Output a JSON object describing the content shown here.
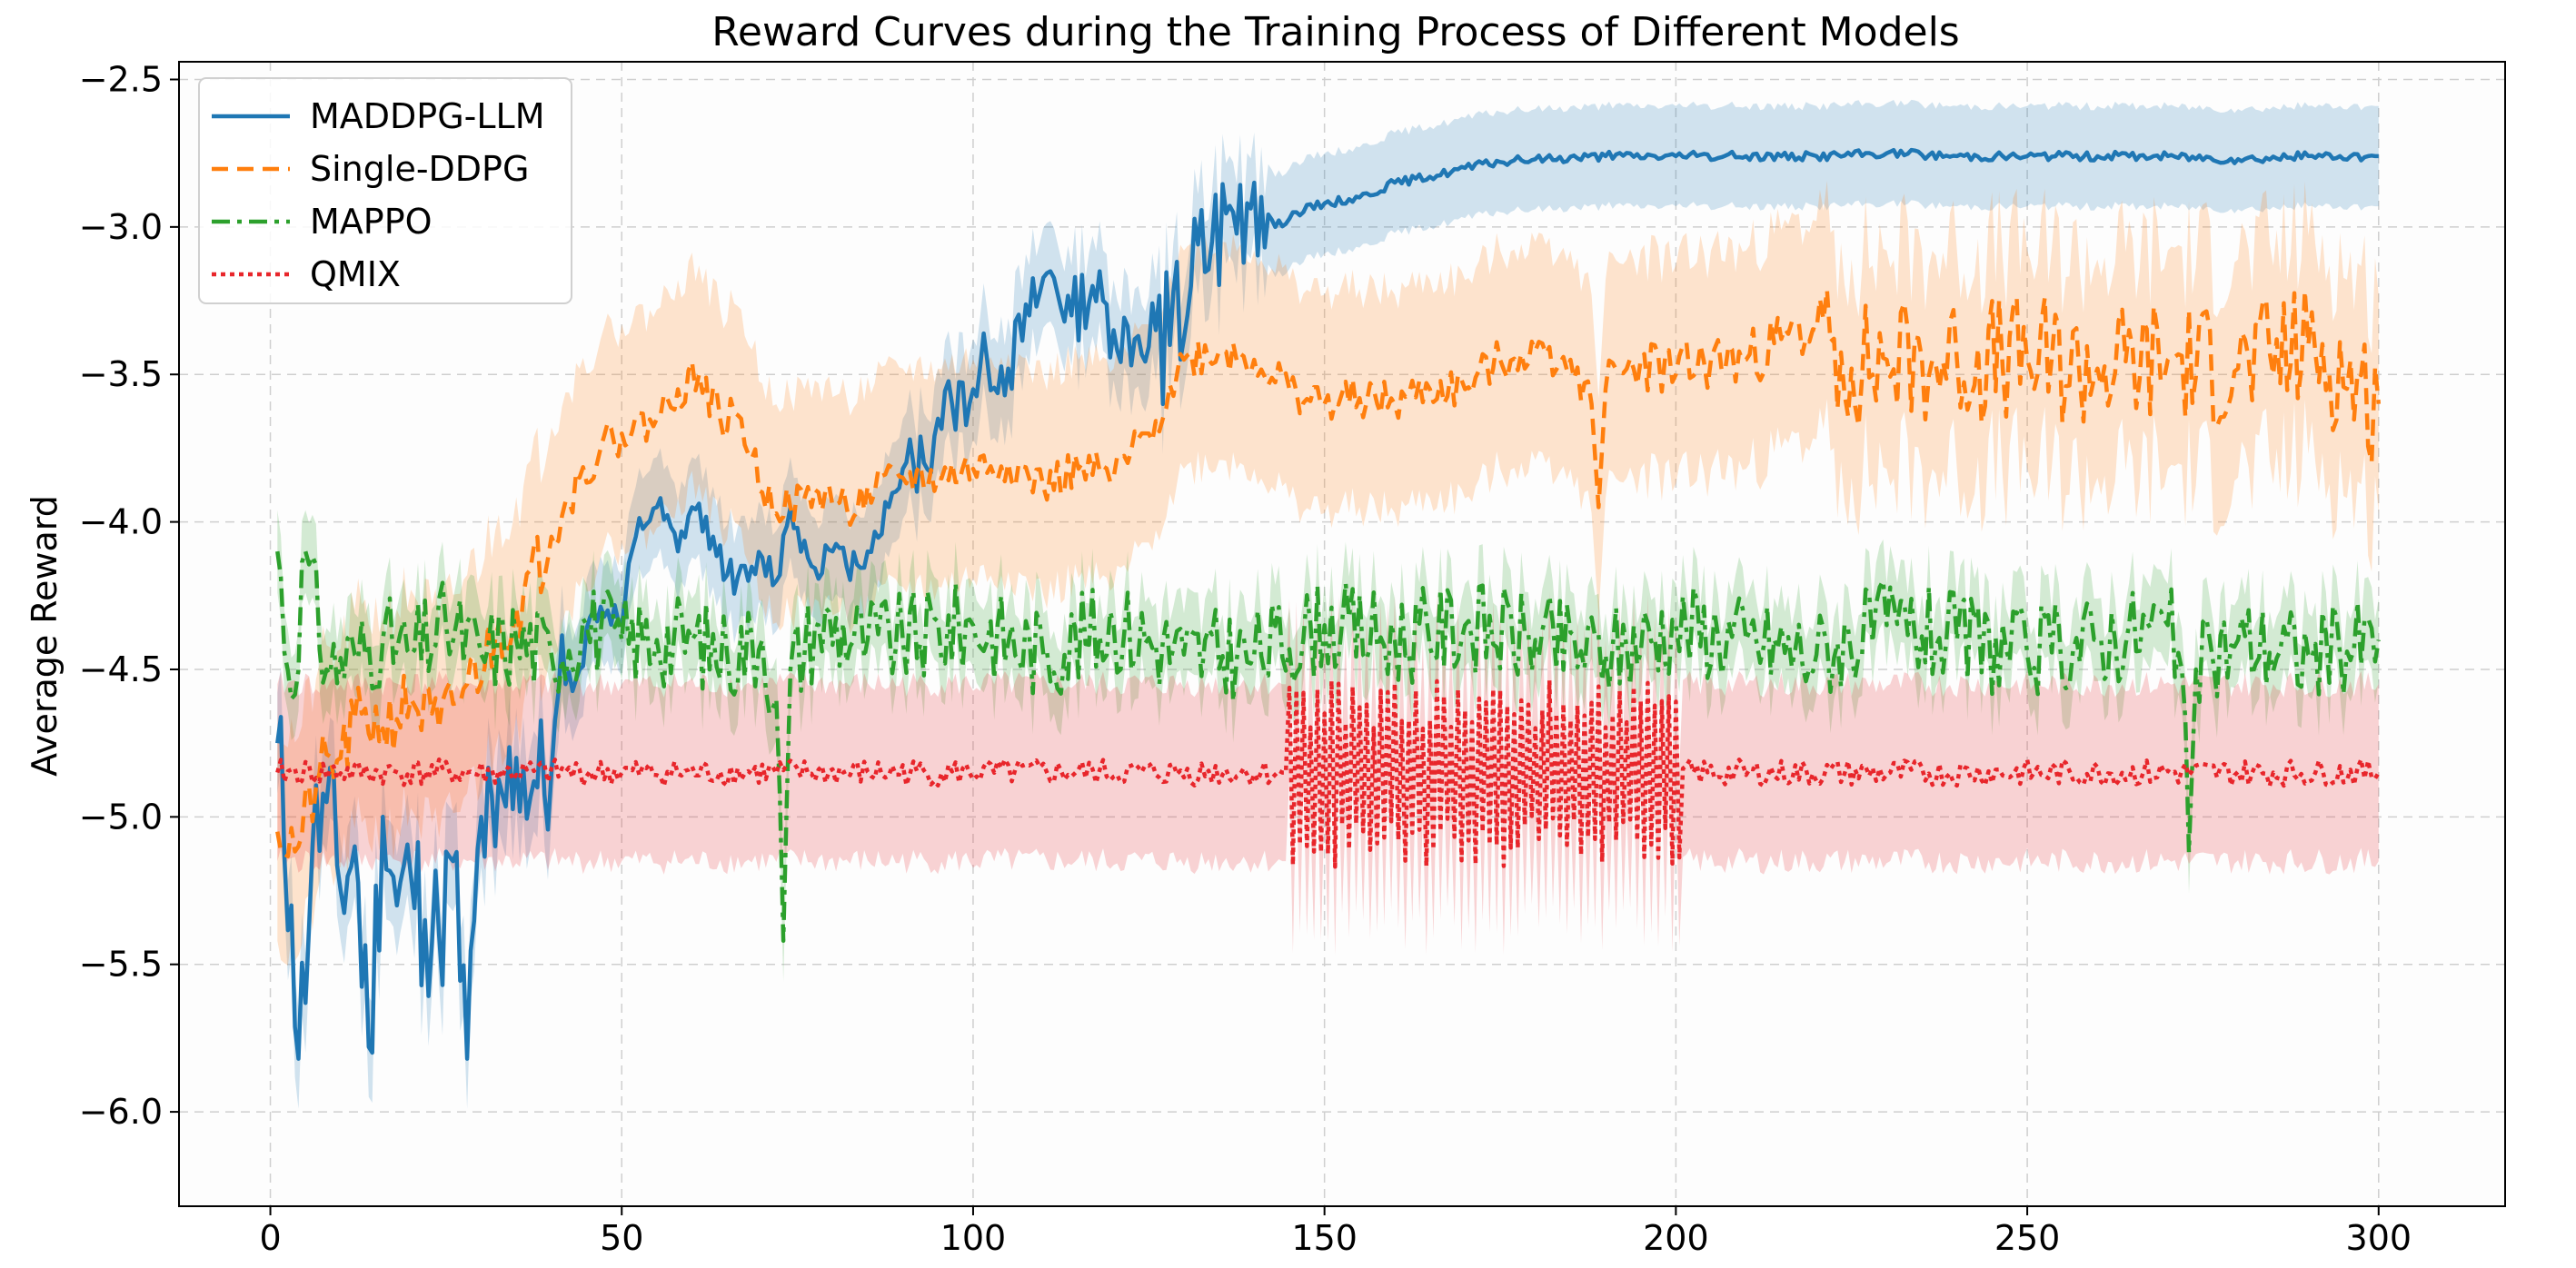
{
  "chart_data": {
    "type": "line",
    "title": "Reward Curves during the Training Process of Different Models",
    "xlabel": "",
    "ylabel": "Average Reward",
    "xlim": [
      -13,
      318
    ],
    "ylim": [
      -6.32,
      -2.44
    ],
    "xticks": [
      0,
      50,
      100,
      150,
      200,
      250,
      300
    ],
    "xtick_labels": [
      "0",
      "50",
      "100",
      "150",
      "200",
      "250",
      "300"
    ],
    "yticks": [
      -2.5,
      -3.0,
      -3.5,
      -4.0,
      -4.5,
      -5.0,
      -5.5,
      -6.0
    ],
    "ytick_labels": [
      "−2.5",
      "−3.0",
      "−3.5",
      "−4.0",
      "−4.5",
      "−5.0",
      "−5.5",
      "−6.0"
    ],
    "grid": true,
    "legend_position": "top-left",
    "series": [
      {
        "name": "MADDPG-LLM",
        "color": "#1f77b4",
        "dash": "solid",
        "band_width": 0.17,
        "keypoints": [
          [
            1,
            -4.75
          ],
          [
            3,
            -5.3
          ],
          [
            4,
            -5.82
          ],
          [
            6,
            -5.1
          ],
          [
            8,
            -4.95
          ],
          [
            10,
            -5.25
          ],
          [
            12,
            -5.1
          ],
          [
            14,
            -5.78
          ],
          [
            16,
            -5.0
          ],
          [
            18,
            -5.3
          ],
          [
            20,
            -5.2
          ],
          [
            22,
            -5.35
          ],
          [
            24,
            -5.4
          ],
          [
            26,
            -5.15
          ],
          [
            28,
            -5.82
          ],
          [
            30,
            -5.0
          ],
          [
            32,
            -5.1
          ],
          [
            35,
            -4.8
          ],
          [
            38,
            -4.9
          ],
          [
            40,
            -4.85
          ],
          [
            42,
            -4.55
          ],
          [
            44,
            -4.5
          ],
          [
            46,
            -4.3
          ],
          [
            48,
            -4.3
          ],
          [
            50,
            -4.35
          ],
          [
            52,
            -4.05
          ],
          [
            55,
            -3.95
          ],
          [
            58,
            -4.1
          ],
          [
            60,
            -3.95
          ],
          [
            63,
            -4.05
          ],
          [
            65,
            -4.18
          ],
          [
            68,
            -4.2
          ],
          [
            70,
            -4.12
          ],
          [
            72,
            -4.2
          ],
          [
            74,
            -3.95
          ],
          [
            77,
            -4.15
          ],
          [
            80,
            -4.1
          ],
          [
            82,
            -4.15
          ],
          [
            85,
            -4.1
          ],
          [
            88,
            -3.95
          ],
          [
            90,
            -3.82
          ],
          [
            93,
            -3.8
          ],
          [
            95,
            -3.65
          ],
          [
            97,
            -3.6
          ],
          [
            100,
            -3.55
          ],
          [
            102,
            -3.45
          ],
          [
            105,
            -3.48
          ],
          [
            108,
            -3.3
          ],
          [
            111,
            -3.15
          ],
          [
            114,
            -3.3
          ],
          [
            117,
            -3.2
          ],
          [
            120,
            -3.35
          ],
          [
            123,
            -3.38
          ],
          [
            126,
            -3.35
          ],
          [
            128,
            -3.4
          ],
          [
            131,
            -3.2
          ],
          [
            134,
            -3.05
          ],
          [
            137,
            -2.95
          ],
          [
            140,
            -2.85
          ],
          [
            143,
            -3.0
          ],
          [
            146,
            -2.95
          ],
          [
            150,
            -2.92
          ],
          [
            155,
            -2.9
          ],
          [
            160,
            -2.85
          ],
          [
            165,
            -2.83
          ],
          [
            170,
            -2.8
          ],
          [
            175,
            -2.78
          ],
          [
            180,
            -2.77
          ],
          [
            190,
            -2.76
          ],
          [
            200,
            -2.76
          ],
          [
            210,
            -2.76
          ],
          [
            220,
            -2.76
          ],
          [
            230,
            -2.75
          ],
          [
            240,
            -2.76
          ],
          [
            250,
            -2.76
          ],
          [
            260,
            -2.76
          ],
          [
            270,
            -2.76
          ],
          [
            280,
            -2.77
          ],
          [
            290,
            -2.76
          ],
          [
            300,
            -2.76
          ]
        ],
        "noise": [
          {
            "from": 1,
            "to": 42,
            "amp": 0.28,
            "seed": 11
          },
          {
            "from": 42,
            "to": 90,
            "amp": 0.06,
            "seed": 12
          },
          {
            "from": 90,
            "to": 125,
            "amp": 0.12,
            "seed": 13
          },
          {
            "from": 125,
            "to": 142,
            "amp": 0.26,
            "seed": 14
          },
          {
            "from": 142,
            "to": 300,
            "amp": 0.015,
            "seed": 15
          }
        ]
      },
      {
        "name": "Single-DDPG",
        "color": "#ff7f0e",
        "dash": "18,10",
        "band_width": 0.37,
        "keypoints": [
          [
            1,
            -5.05
          ],
          [
            4,
            -5.1
          ],
          [
            7,
            -4.85
          ],
          [
            10,
            -4.8
          ],
          [
            13,
            -4.65
          ],
          [
            16,
            -4.7
          ],
          [
            20,
            -4.6
          ],
          [
            24,
            -4.7
          ],
          [
            28,
            -4.55
          ],
          [
            32,
            -4.4
          ],
          [
            36,
            -4.25
          ],
          [
            40,
            -4.05
          ],
          [
            44,
            -3.85
          ],
          [
            47,
            -3.75
          ],
          [
            50,
            -3.7
          ],
          [
            55,
            -3.65
          ],
          [
            58,
            -3.55
          ],
          [
            61,
            -3.5
          ],
          [
            64,
            -3.65
          ],
          [
            67,
            -3.65
          ],
          [
            70,
            -3.9
          ],
          [
            74,
            -3.95
          ],
          [
            78,
            -3.9
          ],
          [
            82,
            -3.95
          ],
          [
            86,
            -3.9
          ],
          [
            90,
            -3.85
          ],
          [
            95,
            -3.85
          ],
          [
            100,
            -3.82
          ],
          [
            105,
            -3.8
          ],
          [
            110,
            -3.88
          ],
          [
            115,
            -3.82
          ],
          [
            120,
            -3.85
          ],
          [
            125,
            -3.7
          ],
          [
            130,
            -3.45
          ],
          [
            135,
            -3.42
          ],
          [
            140,
            -3.45
          ],
          [
            145,
            -3.55
          ],
          [
            150,
            -3.6
          ],
          [
            155,
            -3.58
          ],
          [
            160,
            -3.6
          ],
          [
            165,
            -3.55
          ],
          [
            170,
            -3.55
          ],
          [
            175,
            -3.45
          ],
          [
            180,
            -3.42
          ],
          [
            185,
            -3.45
          ],
          [
            188,
            -3.6
          ],
          [
            189,
            -3.95
          ],
          [
            190,
            -3.55
          ],
          [
            195,
            -3.45
          ],
          [
            200,
            -3.5
          ],
          [
            205,
            -3.45
          ],
          [
            210,
            -3.45
          ],
          [
            215,
            -3.38
          ],
          [
            220,
            -3.35
          ],
          [
            225,
            -3.48
          ],
          [
            230,
            -3.45
          ],
          [
            240,
            -3.45
          ],
          [
            250,
            -3.45
          ],
          [
            260,
            -3.48
          ],
          [
            270,
            -3.45
          ],
          [
            280,
            -3.48
          ],
          [
            290,
            -3.4
          ],
          [
            300,
            -3.6
          ]
        ],
        "noise": [
          {
            "from": 1,
            "to": 40,
            "amp": 0.12,
            "seed": 21
          },
          {
            "from": 40,
            "to": 188,
            "amp": 0.07,
            "seed": 22
          },
          {
            "from": 190,
            "to": 220,
            "amp": 0.1,
            "seed": 23
          },
          {
            "from": 220,
            "to": 300,
            "amp": 0.22,
            "seed": 24
          }
        ]
      },
      {
        "name": "MAPPO",
        "color": "#2ca02c",
        "dash": "20,8,5,8",
        "band_width": 0.14,
        "keypoints": [
          [
            1,
            -4.1
          ],
          [
            3,
            -4.6
          ],
          [
            5,
            -4.1
          ],
          [
            8,
            -4.5
          ],
          [
            12,
            -4.45
          ],
          [
            16,
            -4.4
          ],
          [
            20,
            -4.45
          ],
          [
            25,
            -4.35
          ],
          [
            30,
            -4.45
          ],
          [
            35,
            -4.4
          ],
          [
            40,
            -4.45
          ],
          [
            45,
            -4.35
          ],
          [
            50,
            -4.4
          ],
          [
            55,
            -4.4
          ],
          [
            60,
            -4.4
          ],
          [
            65,
            -4.45
          ],
          [
            70,
            -4.4
          ],
          [
            72,
            -4.6
          ],
          [
            73,
            -5.42
          ],
          [
            74,
            -4.5
          ],
          [
            78,
            -4.35
          ],
          [
            85,
            -4.4
          ],
          [
            90,
            -4.4
          ],
          [
            100,
            -4.35
          ],
          [
            110,
            -4.45
          ],
          [
            120,
            -4.35
          ],
          [
            130,
            -4.45
          ],
          [
            140,
            -4.45
          ],
          [
            150,
            -4.35
          ],
          [
            160,
            -4.4
          ],
          [
            170,
            -4.35
          ],
          [
            180,
            -4.4
          ],
          [
            190,
            -4.45
          ],
          [
            200,
            -4.35
          ],
          [
            210,
            -4.4
          ],
          [
            220,
            -4.45
          ],
          [
            230,
            -4.35
          ],
          [
            240,
            -4.4
          ],
          [
            250,
            -4.45
          ],
          [
            260,
            -4.4
          ],
          [
            270,
            -4.35
          ],
          [
            272,
            -4.5
          ],
          [
            273,
            -5.12
          ],
          [
            274,
            -4.5
          ],
          [
            280,
            -4.4
          ],
          [
            290,
            -4.45
          ],
          [
            300,
            -4.4
          ]
        ],
        "noise": [
          {
            "from": 1,
            "to": 300,
            "amp": 0.16,
            "seed": 31
          }
        ]
      },
      {
        "name": "QMIX",
        "color": "#e8262b",
        "dash": "5,5",
        "band_width": 0.3,
        "keypoints": [
          [
            1,
            -4.85
          ],
          [
            300,
            -4.85
          ]
        ],
        "noise": [
          {
            "from": 1,
            "to": 144,
            "amp": 0.045,
            "seed": 41
          },
          {
            "from": 145,
            "to": 201,
            "amp": 0.32,
            "seed": 42,
            "mode": "alternate"
          },
          {
            "from": 201,
            "to": 300,
            "amp": 0.045,
            "seed": 43
          }
        ]
      }
    ]
  }
}
